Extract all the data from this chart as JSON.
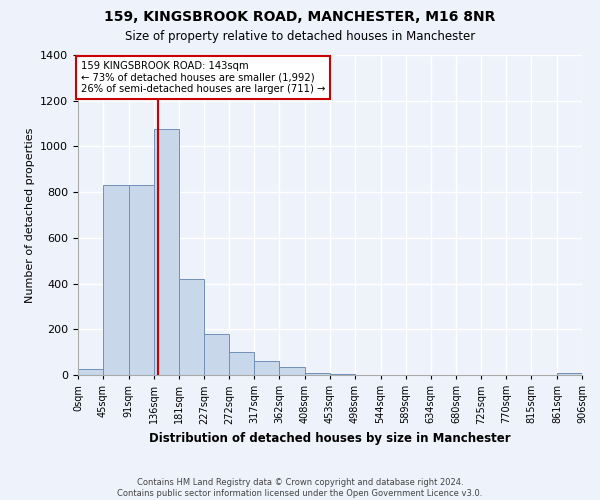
{
  "title": "159, KINGSBROOK ROAD, MANCHESTER, M16 8NR",
  "subtitle": "Size of property relative to detached houses in Manchester",
  "xlabel": "Distribution of detached houses by size in Manchester",
  "ylabel": "Number of detached properties",
  "bin_edges": [
    0,
    45,
    91,
    136,
    181,
    227,
    272,
    317,
    362,
    408,
    453,
    498,
    544,
    589,
    634,
    680,
    725,
    770,
    815,
    861,
    906
  ],
  "bin_labels": [
    "0sqm",
    "45sqm",
    "91sqm",
    "136sqm",
    "181sqm",
    "227sqm",
    "272sqm",
    "317sqm",
    "362sqm",
    "408sqm",
    "453sqm",
    "498sqm",
    "544sqm",
    "589sqm",
    "634sqm",
    "680sqm",
    "725sqm",
    "770sqm",
    "815sqm",
    "861sqm",
    "906sqm"
  ],
  "bar_heights": [
    25,
    830,
    830,
    1075,
    420,
    180,
    100,
    60,
    35,
    10,
    5,
    2,
    1,
    0,
    0,
    0,
    0,
    0,
    0,
    10
  ],
  "bar_color": "#c8d8ea",
  "bar_edge_color": "#7090b8",
  "vline_x": 143,
  "vline_color": "#cc0000",
  "ylim": [
    0,
    1400
  ],
  "yticks": [
    0,
    200,
    400,
    600,
    800,
    1000,
    1200,
    1400
  ],
  "annotation_text": "159 KINGSBROOK ROAD: 143sqm\n← 73% of detached houses are smaller (1,992)\n26% of semi-detached houses are larger (711) →",
  "annotation_box_color": "#ffffff",
  "annotation_box_edge": "#cc0000",
  "bg_color": "#eef2fb",
  "footer_line1": "Contains HM Land Registry data © Crown copyright and database right 2024.",
  "footer_line2": "Contains public sector information licensed under the Open Government Licence v3.0."
}
